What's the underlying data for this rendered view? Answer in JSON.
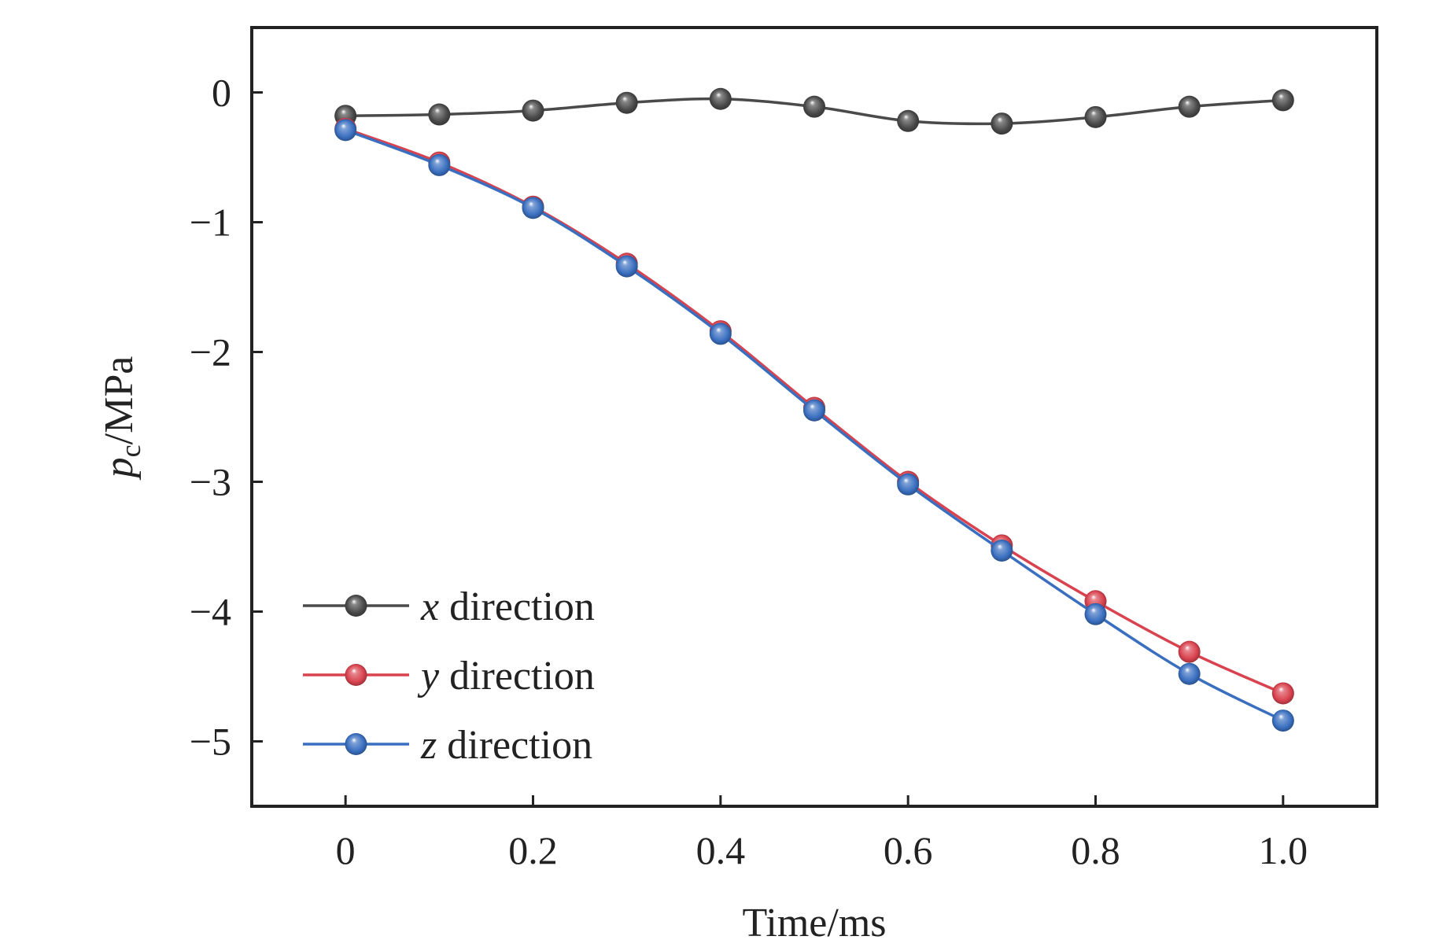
{
  "chart_data": {
    "type": "line",
    "title": "",
    "xlabel": "Time/ms",
    "ylabel": {
      "symbol": "p",
      "subscript": "c",
      "unit": "/MPa"
    },
    "xlim": [
      -0.1,
      1.1
    ],
    "ylim": [
      -5.5,
      0.5
    ],
    "xticks": [
      0,
      0.2,
      0.4,
      0.6,
      0.8,
      1.0
    ],
    "xtick_labels": [
      "0",
      "0.2",
      "0.4",
      "0.6",
      "0.8",
      "1.0"
    ],
    "yticks": [
      0,
      -1,
      -2,
      -3,
      -4,
      -5
    ],
    "ytick_labels": [
      "0",
      "−1",
      "−2",
      "−3",
      "−4",
      "−5"
    ],
    "x": [
      0,
      0.1,
      0.2,
      0.3,
      0.4,
      0.5,
      0.6,
      0.7,
      0.8,
      0.9,
      1.0
    ],
    "legend_position": "bottom-left",
    "series": [
      {
        "name": "x direction",
        "var": "x",
        "label": "direction",
        "color": "#4a4a4a",
        "values": [
          -0.18,
          -0.17,
          -0.14,
          -0.08,
          -0.05,
          -0.11,
          -0.22,
          -0.24,
          -0.19,
          -0.11,
          -0.06
        ]
      },
      {
        "name": "y direction",
        "var": "y",
        "label": "direction",
        "color": "#d9434f",
        "values": [
          -0.28,
          -0.54,
          -0.88,
          -1.32,
          -1.84,
          -2.43,
          -3.0,
          -3.49,
          -3.92,
          -4.31,
          -4.63
        ]
      },
      {
        "name": "z direction",
        "var": "z",
        "label": "direction",
        "color": "#3a6fc0",
        "values": [
          -0.29,
          -0.56,
          -0.89,
          -1.34,
          -1.86,
          -2.45,
          -3.02,
          -3.53,
          -4.02,
          -4.48,
          -4.84
        ]
      }
    ]
  }
}
